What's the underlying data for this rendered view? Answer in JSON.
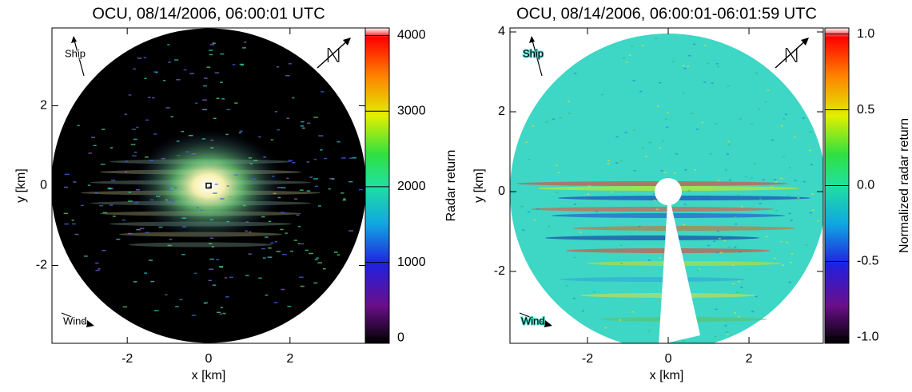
{
  "chart_data": [
    {
      "type": "image",
      "title": "OCU, 08/14/2006, 06:00:01 UTC",
      "x_label": "x [km]",
      "y_label": "y [km]",
      "xlim": [
        -3.85,
        3.85
      ],
      "ylim": [
        -3.95,
        3.95
      ],
      "xticks": [
        -2,
        0,
        2
      ],
      "yticks": [
        -2,
        0,
        2
      ],
      "colorbar": {
        "label": "Radar return",
        "lim": [
          -70,
          4100
        ],
        "ticks": [
          0,
          1000,
          2000,
          3000,
          4000
        ]
      },
      "annotations": [
        "Ship",
        "Wind",
        "N"
      ]
    },
    {
      "type": "image",
      "title": "OCU, 08/14/2006, 06:00:01-06:01:59 UTC",
      "x_label": "x [km]",
      "y_label": "y [km]",
      "xlim": [
        -3.92,
        3.84
      ],
      "ylim": [
        -3.8,
        4.1
      ],
      "xticks": [
        -2,
        0,
        2
      ],
      "yticks": [
        -2,
        0,
        2,
        4
      ],
      "colorbar": {
        "label": "Normalized radar return",
        "lim": [
          -1.04,
          1.04
        ],
        "ticks": [
          {
            "value": -1.0,
            "label": "-1.0"
          },
          {
            "value": -0.5,
            "label": "-0.5"
          },
          {
            "value": 0.0,
            "label": "0.0"
          },
          {
            "value": 0.5,
            "label": "0.5"
          },
          {
            "value": 1.0,
            "label": "1.0"
          }
        ]
      },
      "annotations": [
        "Ship",
        "Wind",
        "N"
      ]
    }
  ]
}
